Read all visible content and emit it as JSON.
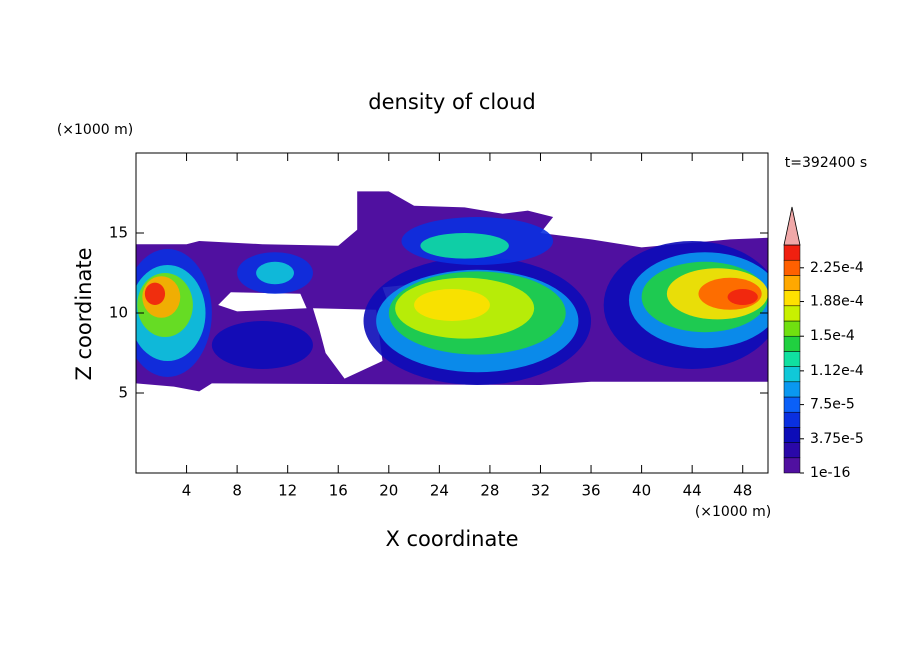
{
  "chart_data": {
    "type": "contour",
    "title": "density of cloud",
    "x_label": "X coordinate",
    "y_label": "Z coordinate",
    "x_unit": "(×1000 m)",
    "y_unit": "(×1000 m)",
    "annotation": "t=392400 s",
    "xlim": [
      0,
      50
    ],
    "ylim": [
      0,
      20
    ],
    "xticks": [
      4,
      8,
      12,
      16,
      20,
      24,
      28,
      32,
      36,
      40,
      44,
      48
    ],
    "yticks": [
      5,
      10,
      15
    ],
    "colorbar": {
      "clim": [
        0,
        0.00025
      ],
      "colors": [
        "#5010a0",
        "#2a08a8",
        "#0c0cb8",
        "#0a30e0",
        "#0a60f8",
        "#0a98f0",
        "#10c8d8",
        "#10e0a0",
        "#20d040",
        "#70e010",
        "#c8f000",
        "#ffe000",
        "#ffa800",
        "#ff6000",
        "#f02010"
      ],
      "over_color": "#f0a8a8",
      "ticks": [
        {
          "value": 1e-16,
          "label": "1e-16"
        },
        {
          "value": 3.75e-05,
          "label": "3.75e-5"
        },
        {
          "value": 7.5e-05,
          "label": "7.5e-5"
        },
        {
          "value": 0.000112,
          "label": "1.12e-4"
        },
        {
          "value": 0.00015,
          "label": "1.5e-4"
        },
        {
          "value": 0.000188,
          "label": "1.88e-4"
        },
        {
          "value": 0.000225,
          "label": "2.25e-4"
        }
      ]
    }
  }
}
